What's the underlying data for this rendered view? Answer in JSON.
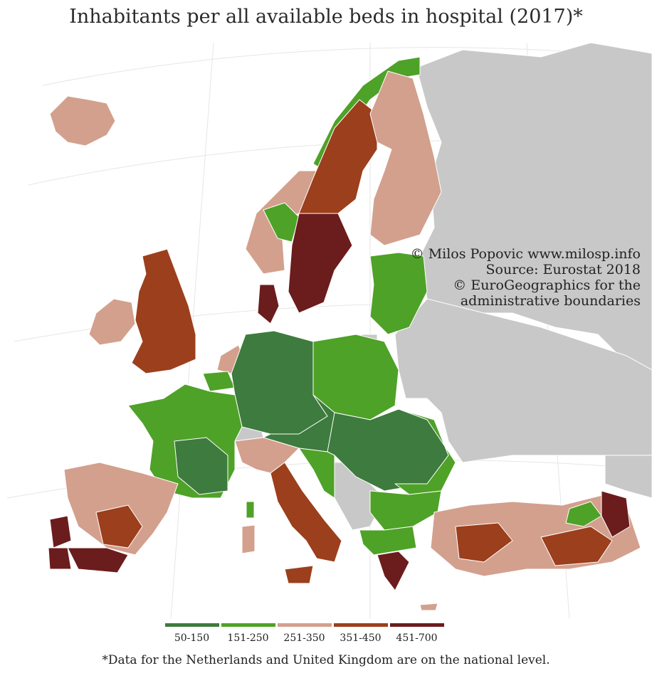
{
  "title": "Inhabitants per all available beds in hospital (2017)*",
  "credits": [
    "© Milos Popovic www.milosp.info",
    "Source: Eurostat 2018",
    "© EuroGeographics for the",
    "administrative boundaries"
  ],
  "legend": [
    {
      "label": "50-150",
      "color": "#3e7b3e"
    },
    {
      "label": "151-250",
      "color": "#4ea227"
    },
    {
      "label": "251-350",
      "color": "#d3a08e"
    },
    {
      "label": "351-450",
      "color": "#9c3f1c"
    },
    {
      "label": "451-700",
      "color": "#6b1c1c"
    }
  ],
  "footnote": "*Data for the Netherlands and United Kingdom are on the national level.",
  "colors": {
    "no_data": "#c8c8c8",
    "sea": "#ffffff",
    "border": "#ffffff"
  },
  "regions": [
    {
      "name": "Iceland",
      "class": "251-350"
    },
    {
      "name": "Ireland",
      "class": "251-350"
    },
    {
      "name": "United Kingdom",
      "class": "351-450"
    },
    {
      "name": "Norway north",
      "class": "151-250"
    },
    {
      "name": "Norway south",
      "class": "251-350"
    },
    {
      "name": "Sweden north",
      "class": "351-450"
    },
    {
      "name": "Sweden south",
      "class": "451-700"
    },
    {
      "name": "Finland",
      "class": "251-350"
    },
    {
      "name": "Denmark",
      "class": "451-700"
    },
    {
      "name": "Baltics",
      "class": "151-250"
    },
    {
      "name": "Poland",
      "class": "151-250"
    },
    {
      "name": "Germany",
      "class": "50-150"
    },
    {
      "name": "Netherlands",
      "class": "251-350"
    },
    {
      "name": "Belgium",
      "class": "151-250"
    },
    {
      "name": "France",
      "class": "151-250"
    },
    {
      "name": "Czechia / Austria",
      "class": "50-150"
    },
    {
      "name": "Hungary / Romania",
      "class": "151-250"
    },
    {
      "name": "Bulgaria",
      "class": "151-250"
    },
    {
      "name": "Spain",
      "class": "251-350"
    },
    {
      "name": "Andalusia",
      "class": "451-700"
    },
    {
      "name": "Portugal north",
      "class": "451-700"
    },
    {
      "name": "Portugal south",
      "class": "451-700"
    },
    {
      "name": "Italy north",
      "class": "251-350"
    },
    {
      "name": "Italy south",
      "class": "351-450"
    },
    {
      "name": "Greece",
      "class": "451-700"
    },
    {
      "name": "Turkey",
      "class": "251-350"
    }
  ]
}
